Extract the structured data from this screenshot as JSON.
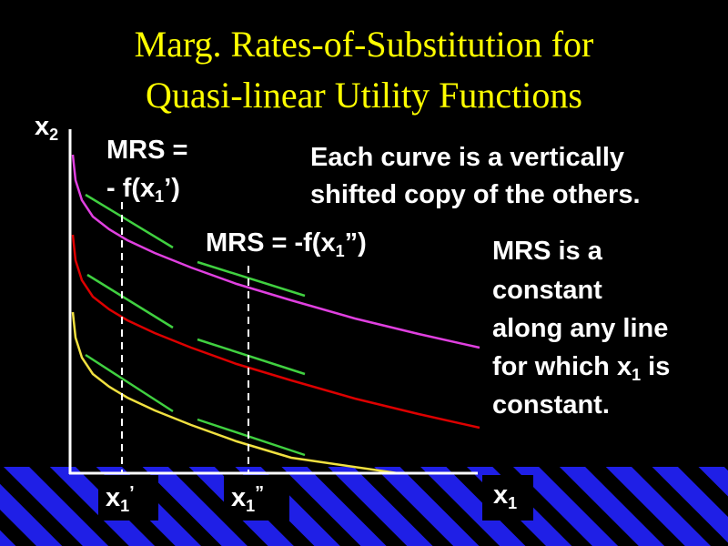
{
  "slide": {
    "title_line1": "Marg. Rates-of-Substitution for",
    "title_line2": "Quasi-linear Utility Functions",
    "title_color": "#FFFF00",
    "background_color": "#000000",
    "stripe_color": "#1F1FE6"
  },
  "axes": {
    "y_label": "x",
    "y_sub": "2",
    "x_label": "x",
    "x_sub": "1"
  },
  "ticks": {
    "x1_prime_base": "x",
    "x1_prime_sub": "1",
    "x1_prime_mark": "’",
    "x1_dprime_base": "x",
    "x1_dprime_sub": "1",
    "x1_dprime_mark": "”"
  },
  "annotations": {
    "mrs1_line1": "MRS =",
    "mrs1_prefix": "- f(x",
    "mrs1_sub": "1",
    "mrs1_suffix": "’)",
    "mrs2_prefix": "MRS = -f(x",
    "mrs2_sub": "1",
    "mrs2_suffix": "”)",
    "shift_line1": "Each curve is a vertically",
    "shift_line2": "shifted copy of the others.",
    "const_line1": "MRS is a",
    "const_line2": "constant",
    "const_line3": "along any line",
    "const_line4_prefix": "for which x",
    "const_line4_sub": "1",
    "const_line4_suffix": " is",
    "const_line5": "constant."
  },
  "curves": [
    {
      "name": "top-indifference-curve",
      "color": "#E040E0"
    },
    {
      "name": "middle-indifference-curve",
      "color": "#DD0000"
    },
    {
      "name": "bottom-indifference-curve",
      "color": "#F0E040"
    }
  ],
  "tangent_color": "#40D040"
}
